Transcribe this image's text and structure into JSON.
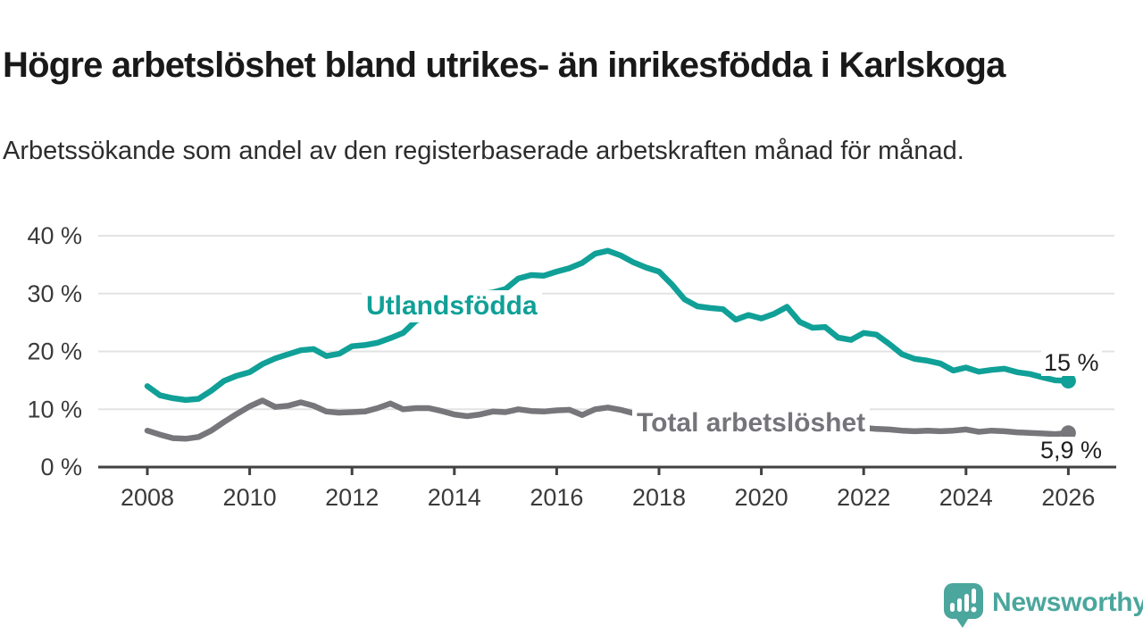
{
  "header": {
    "title": "Högre arbetslöshet bland utrikes- än inrikesfödda i Karlskoga",
    "subtitle": "Arbetssökande som andel av den registerbaserade arbetskraften månad för månad."
  },
  "chart_data": {
    "type": "line",
    "title": "Högre arbetslöshet bland utrikes- än inrikesfödda i Karlskoga",
    "subtitle": "Arbetssökande som andel av den registerbaserade arbetskraften månad för månad.",
    "x_axis": {
      "unit": "year",
      "start": 2008,
      "step": 0.25,
      "range": [
        2007,
        2027
      ],
      "tick_values": [
        2008,
        2010,
        2012,
        2014,
        2016,
        2018,
        2020,
        2022,
        2024,
        2026
      ],
      "tick_labels": [
        "2008",
        "2010",
        "2012",
        "2014",
        "2016",
        "2018",
        "2020",
        "2022",
        "2024",
        "2026"
      ]
    },
    "y_axis": {
      "unit": "%",
      "range": [
        0,
        42
      ],
      "grid": true,
      "tick_values": [
        0,
        10,
        20,
        30,
        40
      ],
      "tick_labels": [
        "0 %",
        "10 %",
        "20 %",
        "30 %",
        "40 %"
      ]
    },
    "legend_position": "inline-labels",
    "series": [
      {
        "name": "Utlandsfödda",
        "color": "#10a097",
        "end_label": "15 %",
        "end_value": 15,
        "values": [
          14.0,
          12.4,
          11.9,
          11.6,
          11.8,
          13.2,
          14.9,
          15.8,
          16.4,
          17.8,
          18.8,
          19.5,
          20.2,
          20.4,
          19.2,
          19.6,
          20.9,
          21.1,
          21.5,
          22.3,
          23.2,
          25.3,
          26.2,
          27.1,
          28.0,
          29.0,
          29.9,
          30.2,
          30.8,
          32.6,
          33.2,
          33.1,
          33.8,
          34.4,
          35.3,
          36.9,
          37.4,
          36.6,
          35.4,
          34.5,
          33.8,
          31.6,
          29.0,
          27.8,
          27.5,
          27.3,
          25.5,
          26.3,
          25.7,
          26.5,
          27.7,
          25.1,
          24.1,
          24.2,
          22.4,
          22.0,
          23.2,
          22.9,
          21.3,
          19.5,
          18.7,
          18.4,
          17.9,
          16.7,
          17.2,
          16.5,
          16.8,
          17.0,
          16.4,
          16.1,
          15.5,
          15.0,
          14.9
        ]
      },
      {
        "name": "Total arbetslöshet",
        "color": "#77767b",
        "end_label": "5,9 %",
        "end_value": 5.9,
        "values": [
          6.3,
          5.6,
          5.0,
          4.9,
          5.2,
          6.3,
          7.8,
          9.2,
          10.5,
          11.5,
          10.4,
          10.6,
          11.2,
          10.6,
          9.6,
          9.4,
          9.5,
          9.6,
          10.2,
          11.0,
          10.0,
          10.2,
          10.2,
          9.7,
          9.1,
          8.8,
          9.1,
          9.6,
          9.5,
          10.0,
          9.7,
          9.6,
          9.8,
          9.9,
          9.0,
          10.0,
          10.3,
          9.9,
          9.3,
          9.1,
          8.9,
          8.7,
          8.5,
          8.3,
          8.2,
          8.1,
          8.0,
          7.9,
          7.9,
          8.0,
          7.9,
          7.7,
          7.5,
          7.3,
          7.1,
          6.9,
          6.8,
          6.6,
          6.5,
          6.3,
          6.2,
          6.3,
          6.2,
          6.3,
          6.5,
          6.1,
          6.3,
          6.2,
          6.0,
          5.9,
          5.8,
          5.7,
          5.9
        ]
      }
    ],
    "colors": {
      "grid_line": "#e3e3e3",
      "axis_line": "#414141",
      "axis_text": "#3a3a3a"
    }
  },
  "branding": {
    "logo_text": "Newsworthy",
    "logo_color": "#4ba69d"
  }
}
